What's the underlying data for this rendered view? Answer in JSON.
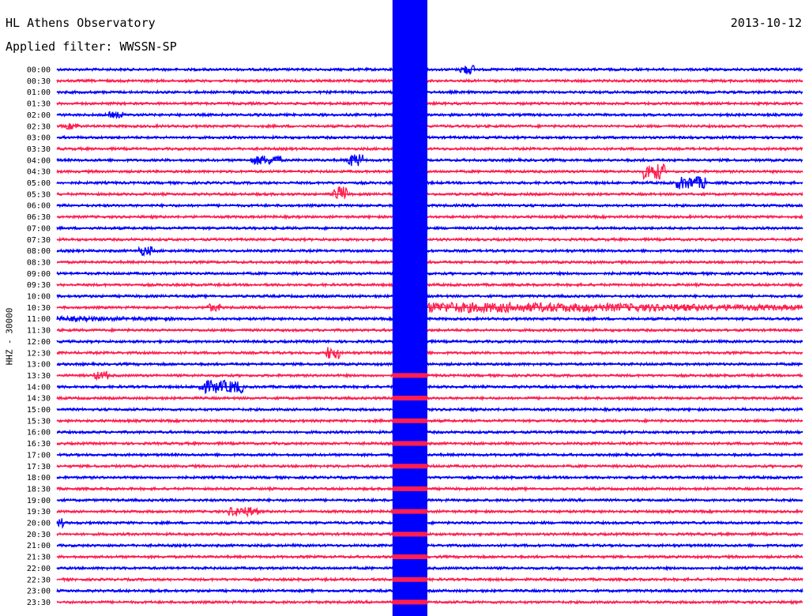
{
  "header": {
    "title": "HL Athens Observatory",
    "filter": "Applied filter: WWSSN-SP",
    "date": "2013-10-12"
  },
  "chart_data": {
    "type": "line",
    "title": "HL Athens Observatory",
    "subtitle": "Applied filter: WWSSN-SP",
    "ylabel": "HHZ - 30000",
    "date": "2013-10-12",
    "rows": [
      "00:00",
      "00:30",
      "01:00",
      "01:30",
      "02:00",
      "02:30",
      "03:00",
      "03:30",
      "04:00",
      "04:30",
      "05:00",
      "05:30",
      "06:00",
      "06:30",
      "07:00",
      "07:30",
      "08:00",
      "08:30",
      "09:00",
      "09:30",
      "10:00",
      "10:30",
      "11:00",
      "11:30",
      "12:00",
      "12:30",
      "13:00",
      "13:30",
      "14:00",
      "14:30",
      "15:00",
      "15:30",
      "16:00",
      "16:30",
      "17:00",
      "17:30",
      "18:00",
      "18:30",
      "19:00",
      "19:30",
      "20:00",
      "20:30",
      "21:00",
      "21:30",
      "22:00",
      "22:30",
      "23:00",
      "23:30"
    ],
    "row_minutes": 30,
    "trace_colors": [
      "#0000ff",
      "#ff1e50"
    ],
    "major_event": {
      "row": "10:30",
      "start_minute": 13.5,
      "duration_minutes": 1.4,
      "coda_minutes": 20
    },
    "grid": false,
    "legend": "none"
  }
}
